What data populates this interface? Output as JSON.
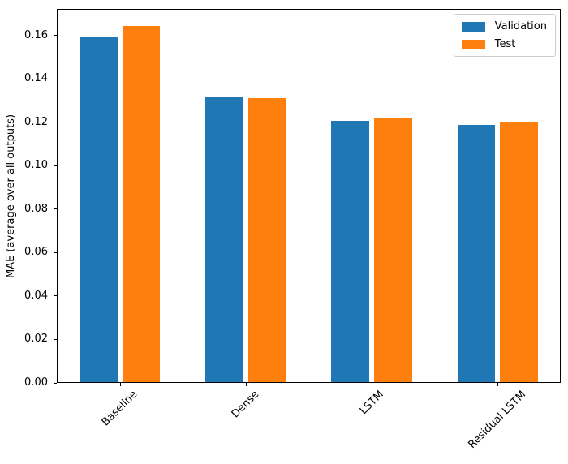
{
  "chart_data": {
    "type": "bar",
    "title": "",
    "xlabel": "",
    "ylabel": "MAE (average over all outputs)",
    "categories": [
      "Baseline",
      "Dense",
      "LSTM",
      "Residual LSTM"
    ],
    "series": [
      {
        "name": "Validation",
        "color": "#1f77b4",
        "values": [
          0.1596,
          0.1316,
          0.1208,
          0.1189
        ]
      },
      {
        "name": "Test",
        "color": "#ff7f0e",
        "values": [
          0.1649,
          0.1313,
          0.1222,
          0.1201
        ]
      }
    ],
    "ylim": [
      0,
      0.1723
    ],
    "yticks": [
      0.0,
      0.02,
      0.04,
      0.06,
      0.08,
      0.1,
      0.12,
      0.14,
      0.16
    ],
    "ytick_labels": [
      "0.00",
      "0.02",
      "0.04",
      "0.06",
      "0.08",
      "0.10",
      "0.12",
      "0.14",
      "0.16"
    ],
    "xtick_rotation_deg": 45,
    "grid": false,
    "legend": {
      "position": "upper right",
      "entries": [
        "Validation",
        "Test"
      ]
    },
    "bar_width_frac": 0.3,
    "bar_center_offset_frac": 0.17
  },
  "colors": {
    "background": "#ffffff",
    "spine": "#000000",
    "text": "#000000",
    "legend_border": "#cccccc",
    "validation_bar": "#1f77b4",
    "test_bar": "#ff7f0e"
  }
}
